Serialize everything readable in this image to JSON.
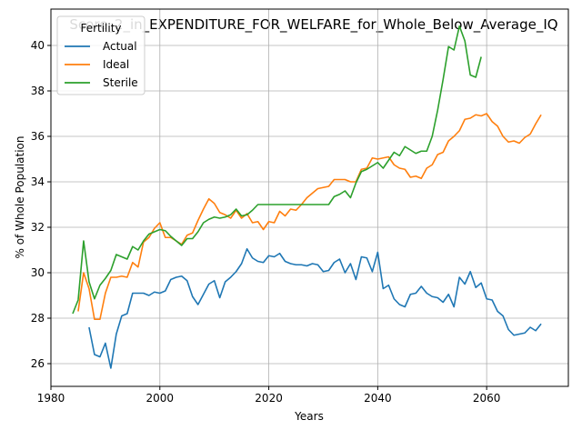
{
  "chart_data": {
    "type": "line",
    "title": "Score_2_in_EXPENDITURE_FOR_WELFARE_for_Whole_Below_Average_IQ",
    "xlabel": "Years",
    "ylabel": "% of Whole Population",
    "xlim": [
      1980,
      2075
    ],
    "ylim": [
      25,
      41.6
    ],
    "xticks": [
      1980,
      2000,
      2020,
      2040,
      2060
    ],
    "yticks": [
      26,
      28,
      30,
      32,
      34,
      36,
      38,
      40
    ],
    "grid": true,
    "legend": {
      "title": "Fertility",
      "placement": "top-left"
    },
    "series": [
      {
        "name": "Actual",
        "color": "#1f77b4",
        "points": [
          [
            1987,
            27.6
          ],
          [
            1988,
            26.4
          ],
          [
            1989,
            26.3
          ],
          [
            1990,
            26.9
          ],
          [
            1991,
            25.8
          ],
          [
            1992,
            27.3
          ],
          [
            1993,
            28.1
          ],
          [
            1994,
            28.2
          ],
          [
            1995,
            29.1
          ],
          [
            1996,
            29.1
          ],
          [
            1997,
            29.1
          ],
          [
            1998,
            29.0
          ],
          [
            1999,
            29.15
          ],
          [
            2000,
            29.1
          ],
          [
            2001,
            29.2
          ],
          [
            2002,
            29.7
          ],
          [
            2003,
            29.8
          ],
          [
            2004,
            29.85
          ],
          [
            2005,
            29.65
          ],
          [
            2006,
            28.95
          ],
          [
            2007,
            28.6
          ],
          [
            2008,
            29.05
          ],
          [
            2009,
            29.5
          ],
          [
            2010,
            29.65
          ],
          [
            2011,
            28.9
          ],
          [
            2012,
            29.6
          ],
          [
            2013,
            29.8
          ],
          [
            2014,
            30.05
          ],
          [
            2015,
            30.4
          ],
          [
            2016,
            31.05
          ],
          [
            2017,
            30.65
          ],
          [
            2018,
            30.5
          ],
          [
            2019,
            30.45
          ],
          [
            2020,
            30.75
          ],
          [
            2021,
            30.7
          ],
          [
            2022,
            30.85
          ],
          [
            2023,
            30.5
          ],
          [
            2024,
            30.4
          ],
          [
            2025,
            30.35
          ],
          [
            2026,
            30.35
          ],
          [
            2027,
            30.3
          ],
          [
            2028,
            30.4
          ],
          [
            2029,
            30.35
          ],
          [
            2030,
            30.05
          ],
          [
            2031,
            30.1
          ],
          [
            2032,
            30.45
          ],
          [
            2033,
            30.6
          ],
          [
            2034,
            30.0
          ],
          [
            2035,
            30.4
          ],
          [
            2036,
            29.7
          ],
          [
            2037,
            30.7
          ],
          [
            2038,
            30.65
          ],
          [
            2039,
            30.05
          ],
          [
            2040,
            30.9
          ],
          [
            2041,
            29.3
          ],
          [
            2042,
            29.45
          ],
          [
            2043,
            28.85
          ],
          [
            2044,
            28.6
          ],
          [
            2045,
            28.5
          ],
          [
            2046,
            29.05
          ],
          [
            2047,
            29.1
          ],
          [
            2048,
            29.4
          ],
          [
            2049,
            29.1
          ],
          [
            2050,
            28.95
          ],
          [
            2051,
            28.9
          ],
          [
            2052,
            28.7
          ],
          [
            2053,
            29.05
          ],
          [
            2054,
            28.5
          ],
          [
            2055,
            29.8
          ],
          [
            2056,
            29.5
          ],
          [
            2057,
            30.05
          ],
          [
            2058,
            29.35
          ],
          [
            2059,
            29.55
          ],
          [
            2060,
            28.85
          ],
          [
            2061,
            28.8
          ],
          [
            2062,
            28.3
          ],
          [
            2063,
            28.1
          ],
          [
            2064,
            27.5
          ],
          [
            2065,
            27.25
          ],
          [
            2066,
            27.3
          ],
          [
            2067,
            27.35
          ],
          [
            2068,
            27.6
          ],
          [
            2069,
            27.45
          ],
          [
            2070,
            27.75
          ]
        ]
      },
      {
        "name": "Ideal",
        "color": "#ff7f0e",
        "points": [
          [
            1985,
            28.3
          ],
          [
            1986,
            30.0
          ],
          [
            1987,
            29.3
          ],
          [
            1988,
            27.95
          ],
          [
            1989,
            27.95
          ],
          [
            1990,
            29.1
          ],
          [
            1991,
            29.8
          ],
          [
            1992,
            29.8
          ],
          [
            1993,
            29.85
          ],
          [
            1994,
            29.8
          ],
          [
            1995,
            30.45
          ],
          [
            1996,
            30.25
          ],
          [
            1997,
            31.35
          ],
          [
            1998,
            31.55
          ],
          [
            1999,
            31.95
          ],
          [
            2000,
            32.2
          ],
          [
            2001,
            31.55
          ],
          [
            2002,
            31.55
          ],
          [
            2003,
            31.4
          ],
          [
            2004,
            31.25
          ],
          [
            2005,
            31.65
          ],
          [
            2006,
            31.75
          ],
          [
            2007,
            32.3
          ],
          [
            2008,
            32.8
          ],
          [
            2009,
            33.25
          ],
          [
            2010,
            33.05
          ],
          [
            2011,
            32.65
          ],
          [
            2012,
            32.55
          ],
          [
            2013,
            32.4
          ],
          [
            2014,
            32.75
          ],
          [
            2015,
            32.4
          ],
          [
            2016,
            32.6
          ],
          [
            2017,
            32.2
          ],
          [
            2018,
            32.25
          ],
          [
            2019,
            31.9
          ],
          [
            2020,
            32.25
          ],
          [
            2021,
            32.2
          ],
          [
            2022,
            32.7
          ],
          [
            2023,
            32.5
          ],
          [
            2024,
            32.8
          ],
          [
            2025,
            32.75
          ],
          [
            2026,
            33.0
          ],
          [
            2027,
            33.3
          ],
          [
            2028,
            33.5
          ],
          [
            2029,
            33.7
          ],
          [
            2030,
            33.75
          ],
          [
            2031,
            33.8
          ],
          [
            2032,
            34.1
          ],
          [
            2033,
            34.1
          ],
          [
            2034,
            34.1
          ],
          [
            2035,
            34.0
          ],
          [
            2036,
            34.0
          ],
          [
            2037,
            34.55
          ],
          [
            2038,
            34.6
          ],
          [
            2039,
            35.05
          ],
          [
            2040,
            35.0
          ],
          [
            2041,
            35.05
          ],
          [
            2042,
            35.1
          ],
          [
            2043,
            34.75
          ],
          [
            2044,
            34.6
          ],
          [
            2045,
            34.55
          ],
          [
            2046,
            34.2
          ],
          [
            2047,
            34.25
          ],
          [
            2048,
            34.15
          ],
          [
            2049,
            34.6
          ],
          [
            2050,
            34.75
          ],
          [
            2051,
            35.2
          ],
          [
            2052,
            35.3
          ],
          [
            2053,
            35.8
          ],
          [
            2054,
            36.0
          ],
          [
            2055,
            36.25
          ],
          [
            2056,
            36.75
          ],
          [
            2057,
            36.8
          ],
          [
            2058,
            36.95
          ],
          [
            2059,
            36.9
          ],
          [
            2060,
            37.0
          ],
          [
            2061,
            36.65
          ],
          [
            2062,
            36.45
          ],
          [
            2063,
            36.0
          ],
          [
            2064,
            35.75
          ],
          [
            2065,
            35.8
          ],
          [
            2066,
            35.7
          ],
          [
            2067,
            35.95
          ],
          [
            2068,
            36.1
          ],
          [
            2069,
            36.55
          ],
          [
            2070,
            36.95
          ]
        ]
      },
      {
        "name": "Sterile",
        "color": "#2ca02c",
        "points": [
          [
            1984,
            28.2
          ],
          [
            1985,
            28.8
          ],
          [
            1986,
            31.4
          ],
          [
            1987,
            29.6
          ],
          [
            1988,
            28.85
          ],
          [
            1989,
            29.45
          ],
          [
            1990,
            29.75
          ],
          [
            1991,
            30.1
          ],
          [
            1992,
            30.8
          ],
          [
            1993,
            30.7
          ],
          [
            1994,
            30.6
          ],
          [
            1995,
            31.15
          ],
          [
            1996,
            31.0
          ],
          [
            1997,
            31.4
          ],
          [
            1998,
            31.7
          ],
          [
            1999,
            31.8
          ],
          [
            2000,
            31.9
          ],
          [
            2001,
            31.85
          ],
          [
            2002,
            31.6
          ],
          [
            2003,
            31.4
          ],
          [
            2004,
            31.2
          ],
          [
            2005,
            31.5
          ],
          [
            2006,
            31.5
          ],
          [
            2007,
            31.8
          ],
          [
            2008,
            32.2
          ],
          [
            2009,
            32.35
          ],
          [
            2010,
            32.45
          ],
          [
            2011,
            32.4
          ],
          [
            2012,
            32.45
          ],
          [
            2013,
            32.55
          ],
          [
            2014,
            32.8
          ],
          [
            2015,
            32.5
          ],
          [
            2016,
            32.55
          ],
          [
            2017,
            32.75
          ],
          [
            2018,
            33.0
          ],
          [
            2019,
            33.0
          ],
          [
            2020,
            33.0
          ],
          [
            2021,
            33.0
          ],
          [
            2022,
            33.0
          ],
          [
            2023,
            33.0
          ],
          [
            2024,
            33.0
          ],
          [
            2025,
            33.0
          ],
          [
            2026,
            33.0
          ],
          [
            2027,
            33.0
          ],
          [
            2028,
            33.0
          ],
          [
            2029,
            33.0
          ],
          [
            2030,
            33.0
          ],
          [
            2031,
            33.0
          ],
          [
            2032,
            33.35
          ],
          [
            2033,
            33.45
          ],
          [
            2034,
            33.6
          ],
          [
            2035,
            33.3
          ],
          [
            2036,
            33.95
          ],
          [
            2037,
            34.45
          ],
          [
            2038,
            34.55
          ],
          [
            2039,
            34.7
          ],
          [
            2040,
            34.85
          ],
          [
            2041,
            34.6
          ],
          [
            2042,
            34.95
          ],
          [
            2043,
            35.3
          ],
          [
            2044,
            35.15
          ],
          [
            2045,
            35.55
          ],
          [
            2046,
            35.4
          ],
          [
            2047,
            35.25
          ],
          [
            2048,
            35.35
          ],
          [
            2049,
            35.35
          ],
          [
            2050,
            36.0
          ],
          [
            2051,
            37.15
          ],
          [
            2052,
            38.5
          ],
          [
            2053,
            39.95
          ],
          [
            2054,
            39.8
          ],
          [
            2055,
            40.85
          ],
          [
            2056,
            40.2
          ],
          [
            2057,
            38.7
          ],
          [
            2058,
            38.6
          ],
          [
            2059,
            39.5
          ]
        ]
      }
    ]
  }
}
